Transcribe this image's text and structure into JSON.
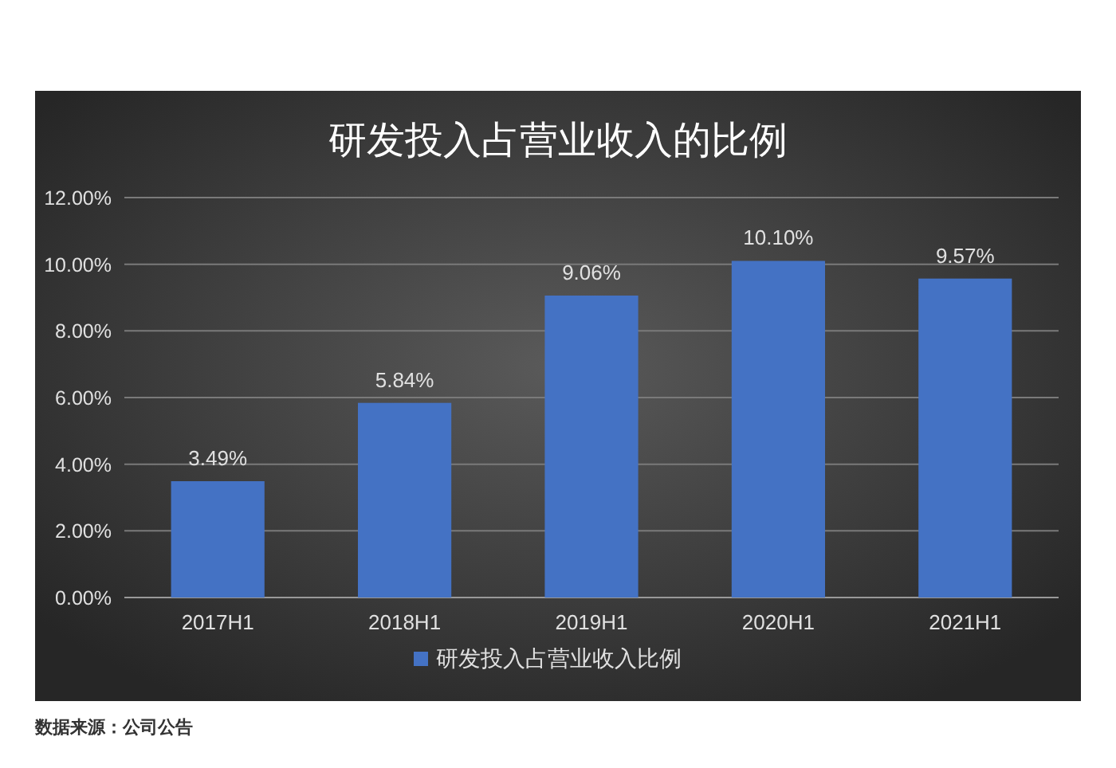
{
  "chart_data": {
    "type": "bar",
    "title": "研发投入占营业收入的比例",
    "categories": [
      "2017H1",
      "2018H1",
      "2019H1",
      "2020H1",
      "2021H1"
    ],
    "series": [
      {
        "name": "研发投入占营业收入比例",
        "color": "#4472c4",
        "values": [
          3.49,
          5.84,
          9.06,
          10.1,
          9.57
        ],
        "value_labels": [
          "3.49%",
          "5.84%",
          "9.06%",
          "10.10%",
          "9.57%"
        ]
      }
    ],
    "ylim": [
      0,
      12
    ],
    "yticks": [
      {
        "value": 0,
        "label": "0.00%"
      },
      {
        "value": 2,
        "label": "2.00%"
      },
      {
        "value": 4,
        "label": "4.00%"
      },
      {
        "value": 6,
        "label": "6.00%"
      },
      {
        "value": 8,
        "label": "8.00%"
      },
      {
        "value": 10,
        "label": "10.00%"
      },
      {
        "value": 12,
        "label": "12.00%"
      }
    ],
    "grid": "y",
    "legend": "bottom",
    "annotations": [
      "数据来源：公司公告"
    ]
  }
}
